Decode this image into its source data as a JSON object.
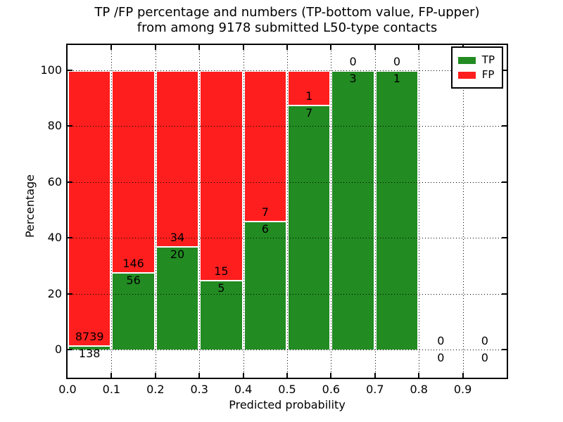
{
  "figure": {
    "title_line1": "TP /FP percentage and numbers (TP-bottom value, FP-upper)",
    "title_line2": "from among 9178 submitted L50-type contacts",
    "xlabel": "Predicted probability",
    "ylabel": "Percentage"
  },
  "chart_data": {
    "type": "bar",
    "stacked": true,
    "title": "TP /FP percentage and numbers (TP-bottom value, FP-upper) from among 9178 submitted L50-type contacts",
    "xlabel": "Predicted probability",
    "ylabel": "Percentage",
    "total_contacts": 9178,
    "xlim": [
      0.0,
      1.0
    ],
    "ylim": [
      -10,
      109
    ],
    "xtick_labels": [
      "0.0",
      "0.1",
      "0.2",
      "0.3",
      "0.4",
      "0.5",
      "0.6",
      "0.7",
      "0.8",
      "0.9"
    ],
    "ytick_labels": [
      "0",
      "20",
      "40",
      "60",
      "80",
      "100"
    ],
    "grid": "dotted",
    "colors": {
      "tp": "#228b22",
      "fp": "#ff1e1e",
      "bar_edge": "#ffffff",
      "axes": "#000000"
    },
    "legend": {
      "position": "upper right",
      "entries": [
        {
          "label": "TP",
          "color": "#228b22"
        },
        {
          "label": "FP",
          "color": "#ff1e1e"
        }
      ]
    },
    "bins": [
      {
        "range": [
          0.0,
          0.1
        ],
        "tp": 138,
        "fp": 8739,
        "tp_pct": 1.6,
        "fp_pct": 98.4
      },
      {
        "range": [
          0.1,
          0.2
        ],
        "tp": 56,
        "fp": 146,
        "tp_pct": 27.7,
        "fp_pct": 72.3
      },
      {
        "range": [
          0.2,
          0.3
        ],
        "tp": 20,
        "fp": 34,
        "tp_pct": 37.0,
        "fp_pct": 63.0
      },
      {
        "range": [
          0.3,
          0.4
        ],
        "tp": 5,
        "fp": 15,
        "tp_pct": 25.0,
        "fp_pct": 75.0
      },
      {
        "range": [
          0.4,
          0.5
        ],
        "tp": 6,
        "fp": 7,
        "tp_pct": 46.2,
        "fp_pct": 53.8
      },
      {
        "range": [
          0.5,
          0.6
        ],
        "tp": 7,
        "fp": 1,
        "tp_pct": 87.5,
        "fp_pct": 12.5
      },
      {
        "range": [
          0.6,
          0.7
        ],
        "tp": 3,
        "fp": 0,
        "tp_pct": 100.0,
        "fp_pct": 0.0
      },
      {
        "range": [
          0.7,
          0.8
        ],
        "tp": 1,
        "fp": 0,
        "tp_pct": 100.0,
        "fp_pct": 0.0
      },
      {
        "range": [
          0.8,
          0.9
        ],
        "tp": 0,
        "fp": 0,
        "tp_pct": 0.0,
        "fp_pct": 0.0
      },
      {
        "range": [
          0.9,
          1.0
        ],
        "tp": 0,
        "fp": 0,
        "tp_pct": 0.0,
        "fp_pct": 0.0
      }
    ]
  }
}
